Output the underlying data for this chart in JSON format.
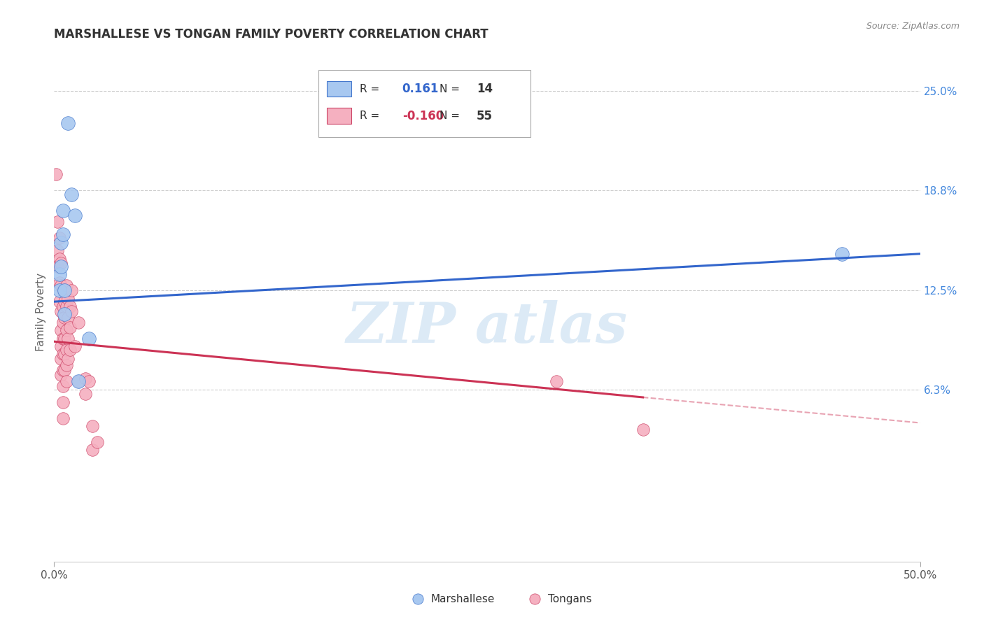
{
  "title": "MARSHALLESE VS TONGAN FAMILY POVERTY CORRELATION CHART",
  "source": "Source: ZipAtlas.com",
  "ylabel": "Family Poverty",
  "right_yticks": [
    0.063,
    0.125,
    0.188,
    0.25
  ],
  "right_yticklabels": [
    "6.3%",
    "12.5%",
    "18.8%",
    "25.0%"
  ],
  "xmin": 0.0,
  "xmax": 0.5,
  "ymin": -0.045,
  "ymax": 0.268,
  "watermark": "ZIP atlas",
  "marshallese_color": "#a8c8f0",
  "tongan_color": "#f5b0c0",
  "marshallese_edge_color": "#4477cc",
  "tongan_edge_color": "#cc4466",
  "marshallese_line_color": "#3366cc",
  "tongan_line_color": "#cc3355",
  "marshallese_R": "0.161",
  "marshallese_N": "14",
  "tongan_R": "-0.160",
  "tongan_N": "55",
  "marshallese_points": [
    [
      0.003,
      0.135
    ],
    [
      0.003,
      0.125
    ],
    [
      0.004,
      0.155
    ],
    [
      0.004,
      0.14
    ],
    [
      0.005,
      0.175
    ],
    [
      0.005,
      0.16
    ],
    [
      0.006,
      0.125
    ],
    [
      0.006,
      0.11
    ],
    [
      0.008,
      0.23
    ],
    [
      0.01,
      0.185
    ],
    [
      0.012,
      0.172
    ],
    [
      0.014,
      0.068
    ],
    [
      0.02,
      0.095
    ],
    [
      0.455,
      0.148
    ]
  ],
  "tongan_points": [
    [
      0.001,
      0.198
    ],
    [
      0.002,
      0.168
    ],
    [
      0.002,
      0.15
    ],
    [
      0.002,
      0.14
    ],
    [
      0.003,
      0.158
    ],
    [
      0.003,
      0.145
    ],
    [
      0.003,
      0.13
    ],
    [
      0.003,
      0.118
    ],
    [
      0.004,
      0.142
    ],
    [
      0.004,
      0.128
    ],
    [
      0.004,
      0.112
    ],
    [
      0.004,
      0.1
    ],
    [
      0.004,
      0.09
    ],
    [
      0.004,
      0.082
    ],
    [
      0.004,
      0.072
    ],
    [
      0.005,
      0.125
    ],
    [
      0.005,
      0.115
    ],
    [
      0.005,
      0.105
    ],
    [
      0.005,
      0.095
    ],
    [
      0.005,
      0.085
    ],
    [
      0.005,
      0.075
    ],
    [
      0.005,
      0.065
    ],
    [
      0.005,
      0.055
    ],
    [
      0.005,
      0.045
    ],
    [
      0.006,
      0.118
    ],
    [
      0.006,
      0.108
    ],
    [
      0.006,
      0.095
    ],
    [
      0.006,
      0.085
    ],
    [
      0.006,
      0.075
    ],
    [
      0.007,
      0.128
    ],
    [
      0.007,
      0.115
    ],
    [
      0.007,
      0.1
    ],
    [
      0.007,
      0.088
    ],
    [
      0.007,
      0.078
    ],
    [
      0.007,
      0.068
    ],
    [
      0.008,
      0.12
    ],
    [
      0.008,
      0.108
    ],
    [
      0.008,
      0.095
    ],
    [
      0.008,
      0.082
    ],
    [
      0.009,
      0.115
    ],
    [
      0.009,
      0.102
    ],
    [
      0.009,
      0.088
    ],
    [
      0.01,
      0.125
    ],
    [
      0.01,
      0.112
    ],
    [
      0.012,
      0.09
    ],
    [
      0.014,
      0.105
    ],
    [
      0.014,
      0.068
    ],
    [
      0.018,
      0.07
    ],
    [
      0.018,
      0.06
    ],
    [
      0.02,
      0.068
    ],
    [
      0.022,
      0.04
    ],
    [
      0.022,
      0.025
    ],
    [
      0.025,
      0.03
    ],
    [
      0.29,
      0.068
    ],
    [
      0.34,
      0.038
    ]
  ],
  "marshallese_line": {
    "x0": 0.0,
    "y0": 0.118,
    "x1": 0.5,
    "y1": 0.148
  },
  "tongan_line_solid": {
    "x0": 0.0,
    "y0": 0.093,
    "x1": 0.34,
    "y1": 0.058
  },
  "tongan_line_dashed": {
    "x0": 0.34,
    "y0": 0.058,
    "x1": 0.5,
    "y1": 0.042
  }
}
